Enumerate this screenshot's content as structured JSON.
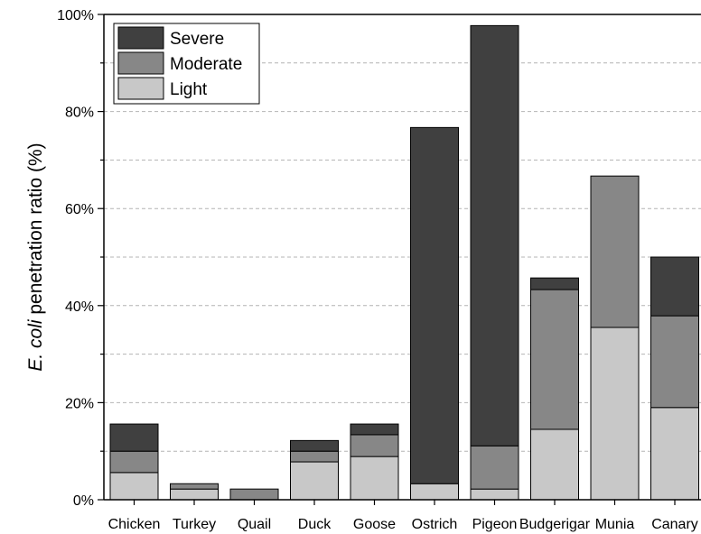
{
  "chart_data": {
    "type": "bar",
    "stacked": true,
    "categories": [
      "Chicken",
      "Turkey",
      "Quail",
      "Duck",
      "Goose",
      "Ostrich",
      "Pigeon",
      "Budgerigar",
      "Munia",
      "Canary"
    ],
    "series": [
      {
        "name": "Light",
        "color": "#c8c8c8",
        "values": [
          5.6,
          2.2,
          0.0,
          7.8,
          8.9,
          3.3,
          2.2,
          14.5,
          35.5,
          19.0
        ]
      },
      {
        "name": "Moderate",
        "color": "#878787",
        "values": [
          4.4,
          1.1,
          2.2,
          2.2,
          4.5,
          0.0,
          8.9,
          28.8,
          31.2,
          18.9
        ]
      },
      {
        "name": "Severe",
        "color": "#404040",
        "values": [
          5.6,
          0.0,
          0.0,
          2.2,
          2.2,
          73.4,
          86.6,
          2.4,
          0.0,
          12.1
        ]
      }
    ],
    "legend_order": [
      "Severe",
      "Moderate",
      "Light"
    ],
    "legend_position": "top-left",
    "ylim": [
      0,
      100
    ],
    "y_ticks": [
      "0%",
      "20%",
      "40%",
      "60%",
      "80%",
      "100%"
    ],
    "y_tick_values": [
      0,
      20,
      40,
      60,
      80,
      100
    ],
    "ylabel_italic": "E. coli",
    "ylabel_rest": " penetration ratio (%)",
    "xlabel": "",
    "grid": "horizontal dashed"
  }
}
